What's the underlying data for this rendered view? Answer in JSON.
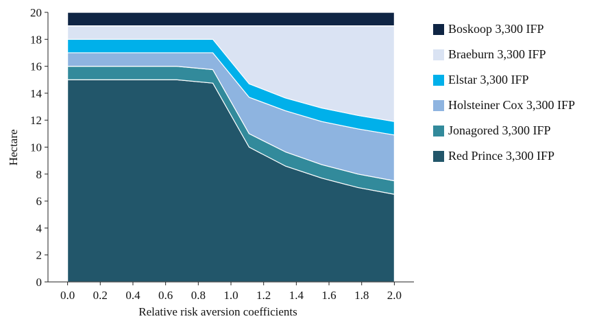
{
  "chart_data": {
    "type": "area",
    "stacked": true,
    "xlabel": "Relative risk aversion coefficients",
    "ylabel": "Hectare",
    "x": [
      0.0,
      0.667,
      0.889,
      1.111,
      1.333,
      1.556,
      1.778,
      2.0
    ],
    "xlim": [
      -0.12,
      2.12
    ],
    "ylim": [
      0,
      20
    ],
    "xticks": [
      "0.0",
      "0.2",
      "0.4",
      "0.6",
      "0.8",
      "1.0",
      "1.2",
      "1.4",
      "1.6",
      "1.8",
      "2.0"
    ],
    "yticks": [
      "0",
      "2",
      "4",
      "6",
      "8",
      "10",
      "12",
      "14",
      "16",
      "18",
      "20"
    ],
    "grid": false,
    "legend_position": "right",
    "series": [
      {
        "name": "Red Prince 3,300 IFP",
        "color": "#22566a",
        "values": [
          15.0,
          15.0,
          14.75,
          10.0,
          8.6,
          7.7,
          7.0,
          6.5
        ]
      },
      {
        "name": "Jonagored 3,300 IFP",
        "color": "#328a9b",
        "values": [
          1.0,
          1.0,
          1.0,
          1.0,
          1.05,
          1.0,
          1.0,
          1.0
        ]
      },
      {
        "name": "Holsteiner Cox 3,300 IFP",
        "color": "#8eb4e0",
        "values": [
          1.0,
          1.0,
          1.25,
          2.7,
          3.05,
          3.2,
          3.35,
          3.4
        ]
      },
      {
        "name": "Elstar 3,300 IFP",
        "color": "#00b0ea",
        "values": [
          1.0,
          1.0,
          1.0,
          1.0,
          0.95,
          1.0,
          1.0,
          1.0
        ]
      },
      {
        "name": "Braeburn 3,300 IFP",
        "color": "#dae3f3",
        "values": [
          1.0,
          1.0,
          1.0,
          4.3,
          5.35,
          6.1,
          6.65,
          7.1
        ]
      },
      {
        "name": "Boskoop 3,300 IFP",
        "color": "#0f2544",
        "values": [
          1.0,
          1.0,
          1.0,
          1.0,
          1.0,
          1.0,
          1.0,
          1.0
        ]
      }
    ],
    "legend_order": [
      5,
      4,
      3,
      2,
      1,
      0
    ]
  }
}
